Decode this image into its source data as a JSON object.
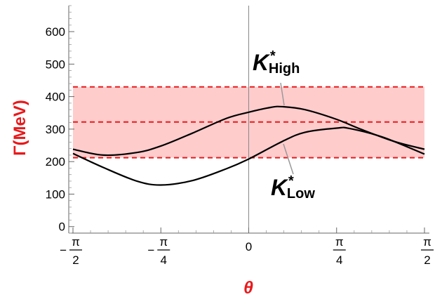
{
  "chart_data": {
    "type": "line",
    "xlabel": "θ",
    "ylabel": "Γ(MeV)",
    "xlim": [
      -1.5708,
      1.5708
    ],
    "ylim": [
      -20,
      680
    ],
    "x_ticks": [
      {
        "value": -1.5708,
        "sign": "−",
        "num": "π",
        "den": "2"
      },
      {
        "value": -0.7854,
        "sign": "−",
        "num": "π",
        "den": "4"
      },
      {
        "value": 0,
        "text": "0"
      },
      {
        "value": 0.7854,
        "sign": "",
        "num": "π",
        "den": "4"
      },
      {
        "value": 1.5708,
        "sign": "",
        "num": "π",
        "den": "2"
      }
    ],
    "y_ticks": [
      0,
      100,
      200,
      300,
      400,
      500,
      600
    ],
    "band": {
      "low": 212,
      "central": 322,
      "high": 430,
      "color": "#ffcccc",
      "line_color": "#e8191c"
    },
    "series": [
      {
        "label_main": "K",
        "label_star": "*",
        "label_sub": "High",
        "x": [
          -1.5708,
          -1.3,
          -1.0,
          -0.7854,
          -0.5,
          -0.2,
          0.0,
          0.2,
          0.3,
          0.5,
          0.7854,
          1.0,
          1.3,
          1.5708
        ],
        "y": [
          238,
          220,
          228,
          248,
          288,
          333,
          352,
          367,
          369,
          360,
          330,
          300,
          262,
          238
        ]
      },
      {
        "label_main": "K",
        "label_star": "*",
        "label_sub": "Low",
        "x": [
          -1.5708,
          -1.3,
          -1.0,
          -0.7854,
          -0.5,
          -0.2,
          0.0,
          0.3,
          0.5,
          0.7854,
          0.9,
          1.2,
          1.5708
        ],
        "y": [
          225,
          182,
          140,
          128,
          142,
          178,
          208,
          262,
          290,
          303,
          302,
          275,
          223
        ]
      }
    ],
    "colors": {
      "curve": "#000000",
      "axis_title": "#e8191c",
      "frame": "#666666"
    }
  }
}
